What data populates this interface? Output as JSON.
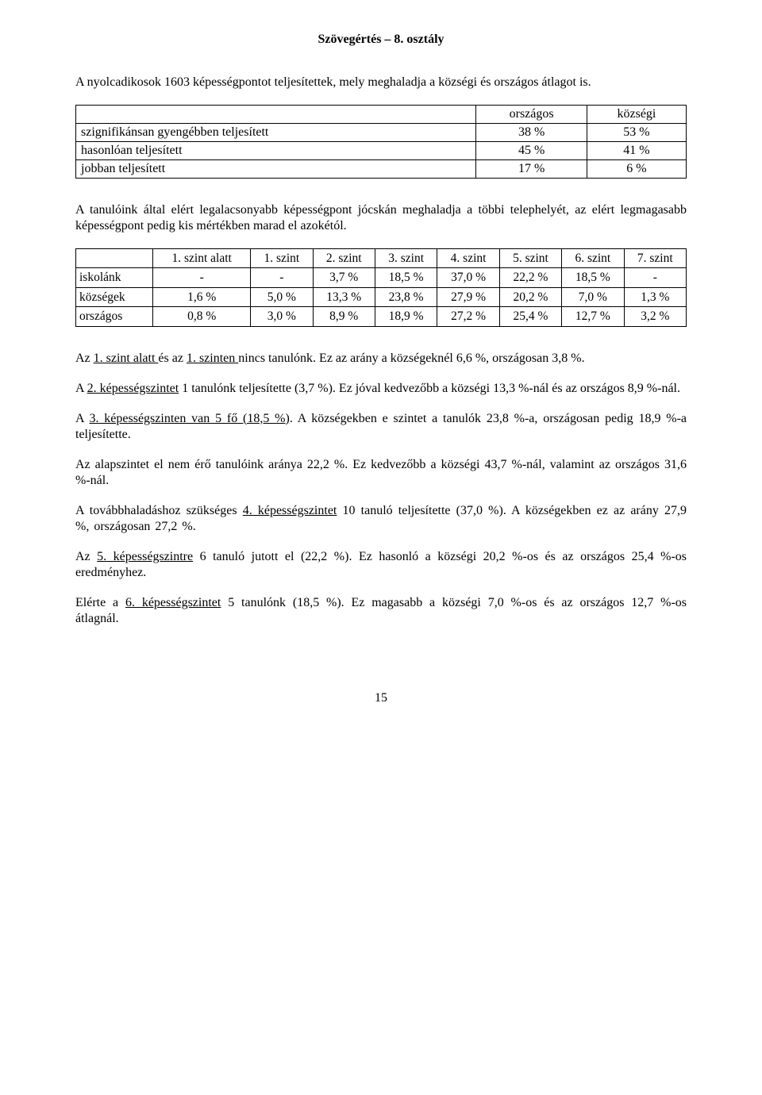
{
  "title": "Szövegértés – 8. osztály",
  "intro": "A nyolcadikosok 1603 képességpontot teljesítettek, mely meghaladja a községi és országos átlagot is.",
  "table1": {
    "head": [
      "",
      "országos",
      "községi"
    ],
    "rows": [
      [
        "szignifikánsan gyengébben teljesített",
        "38 %",
        "53 %"
      ],
      [
        "hasonlóan teljesített",
        "45 %",
        "41 %"
      ],
      [
        "jobban teljesített",
        "17 %",
        "6 %"
      ]
    ]
  },
  "para2": "A tanulóink által elért legalacsonyabb képességpont jócskán meghaladja a többi telephelyét, az elért legmagasabb képességpont pedig kis mértékben marad el azokétól.",
  "table2": {
    "head": [
      "",
      "1. szint alatt",
      "1. szint",
      "2. szint",
      "3. szint",
      "4. szint",
      "5. szint",
      "6. szint",
      "7. szint"
    ],
    "rows": [
      [
        "iskolánk",
        "-",
        "-",
        "3,7 %",
        "18,5 %",
        "37,0 %",
        "22,2 %",
        "18,5 %",
        "-"
      ],
      [
        "községek",
        "1,6 %",
        "5,0 %",
        "13,3 %",
        "23,8 %",
        "27,9 %",
        "20,2 %",
        "7,0 %",
        "1,3 %"
      ],
      [
        "országos",
        "0,8 %",
        "3,0 %",
        "8,9 %",
        "18,9 %",
        "27,2 %",
        "25,4 %",
        "12,7 %",
        "3,2 %"
      ]
    ]
  },
  "p3_a": "Az ",
  "p3_u1": "1. szint alatt ",
  "p3_b": "és az ",
  "p3_u2": "1. szinten ",
  "p3_c": "nincs tanulónk. Ez az arány a községeknél 6,6 %, országosan 3,8 %.",
  "p4_a": "A ",
  "p4_u": "2. képességszintet",
  "p4_b": " 1 tanulónk teljesítette (3,7 %). Ez jóval kedvezőbb a községi 13,3 %-nál és az országos 8,9 %-nál.",
  "p5_a": "A ",
  "p5_u": "3. képességszinten van 5 fő (18,5 %)",
  "p5_b": ". A községekben e szintet a tanulók 23,8 %-a, országosan pedig 18,9 %-a teljesítette.",
  "p6": "Az alapszintet el nem érő tanulóink aránya 22,2 %. Ez kedvezőbb a községi 43,7 %-nál, valamint az országos 31,6 %-nál.",
  "p7_a": "A továbbhaladáshoz szükséges ",
  "p7_u": "4. képességszintet",
  "p7_b": " 10 tanuló teljesítette (37,0 %). A községekben ez az arány 27,9 %, országosan 27,2 %.",
  "p8_a": "Az ",
  "p8_u": "5. képességszintre",
  "p8_b": " 6 tanuló jutott el (22,2 %). Ez hasonló a községi 20,2 %-os és az országos 25,4 %-os eredményhez.",
  "p9_a": "Elérte a ",
  "p9_u": "6. képességszintet",
  "p9_b": " 5 tanulónk (18,5 %). Ez magasabb a községi 7,0 %-os és az országos 12,7 %-os átlagnál.",
  "pagenum": "15"
}
